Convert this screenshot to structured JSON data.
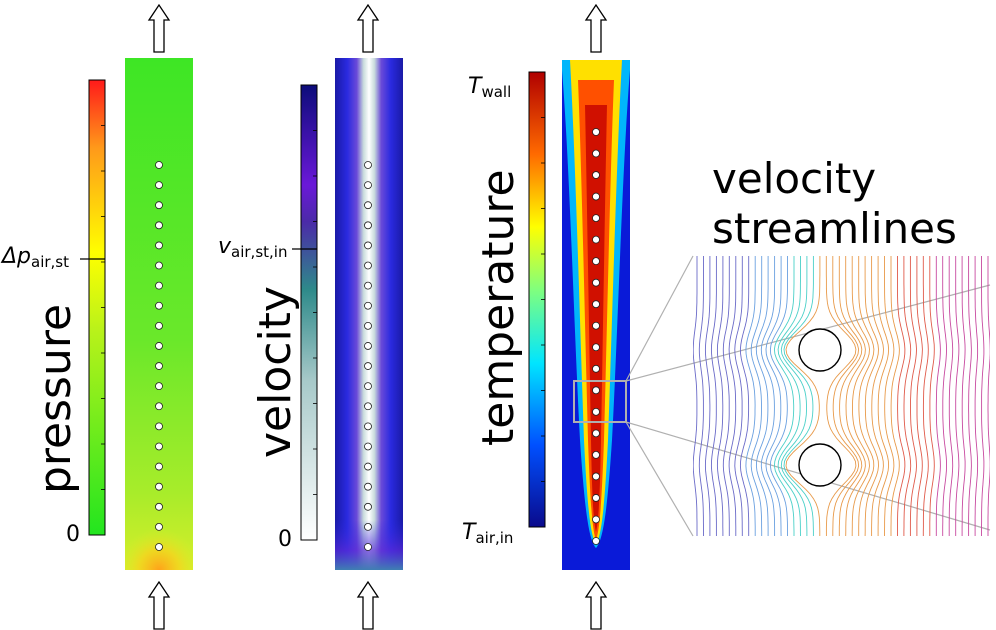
{
  "panels": {
    "pressure": {
      "title": "pressure",
      "zero_label": "0",
      "mark_symbol": "Δp",
      "mark_subscript": "air,st",
      "colors": [
        "#22e51f",
        "#ffff00",
        "#ff1a1a"
      ]
    },
    "velocity": {
      "title": "velocity",
      "zero_label": "0",
      "mark_symbol": "v",
      "mark_subscript": "air,st,in",
      "colors": [
        "#ffffff",
        "#2e8a8a",
        "#4b2aa8",
        "#0c0c7a"
      ]
    },
    "temperature": {
      "title": "temperature",
      "low_symbol": "T",
      "low_subscript": "air,in",
      "high_symbol": "T",
      "high_subscript": "wall",
      "colors": [
        "#0a0a8c",
        "#0050ff",
        "#00e5ff",
        "#7fff7f",
        "#ffff00",
        "#ff6a00",
        "#b00000"
      ]
    },
    "streamlines": {
      "title_line1": "velocity",
      "title_line2": "streamlines"
    }
  },
  "icons": {
    "flow_arrow": "hollow-arrow-up-icon"
  }
}
